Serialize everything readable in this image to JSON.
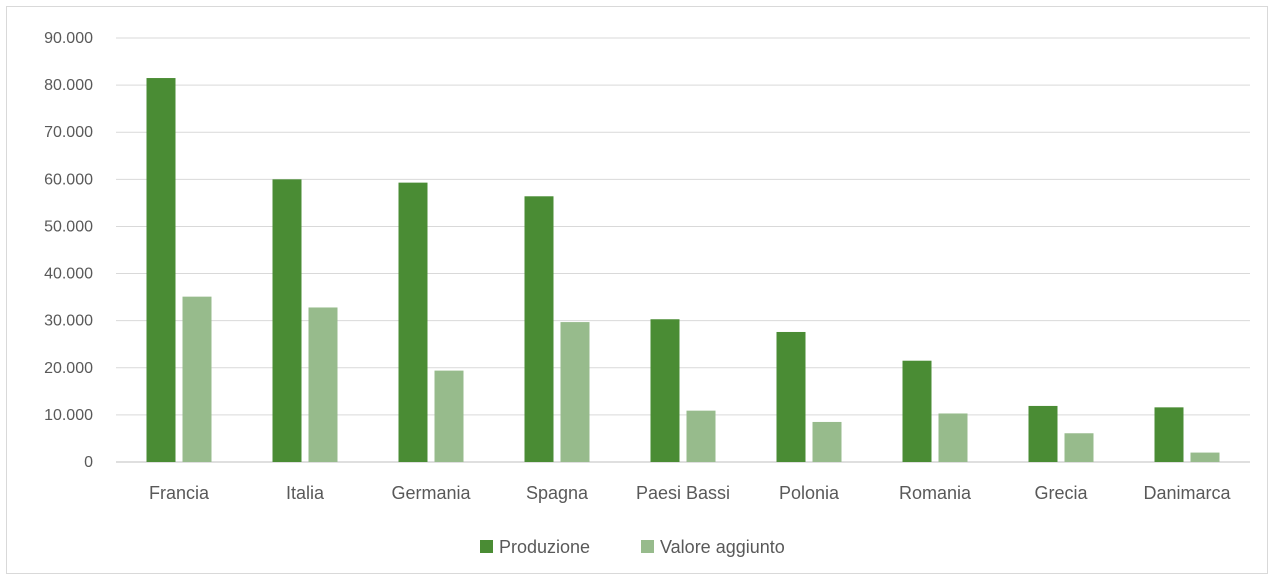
{
  "chart_data": {
    "type": "bar",
    "categories": [
      "Francia",
      "Italia",
      "Germania",
      "Spagna",
      "Paesi Bassi",
      "Polonia",
      "Romania",
      "Grecia",
      "Danimarca"
    ],
    "series": [
      {
        "name": "Produzione",
        "color": "#4a8c34",
        "values": [
          81500,
          60000,
          59300,
          56400,
          30300,
          27600,
          21500,
          11900,
          11600
        ]
      },
      {
        "name": "Valore aggiunto",
        "color": "#97bb8c",
        "values": [
          35100,
          32800,
          19400,
          29700,
          10900,
          8500,
          10300,
          6100,
          2000
        ]
      }
    ],
    "ylim": [
      0,
      90000
    ],
    "yticks": [
      "0",
      "10.000",
      "20.000",
      "30.000",
      "40.000",
      "50.000",
      "60.000",
      "70.000",
      "80.000",
      "90.000"
    ],
    "grid": true,
    "legend_position": "bottom",
    "title": "",
    "xlabel": "",
    "ylabel": ""
  }
}
